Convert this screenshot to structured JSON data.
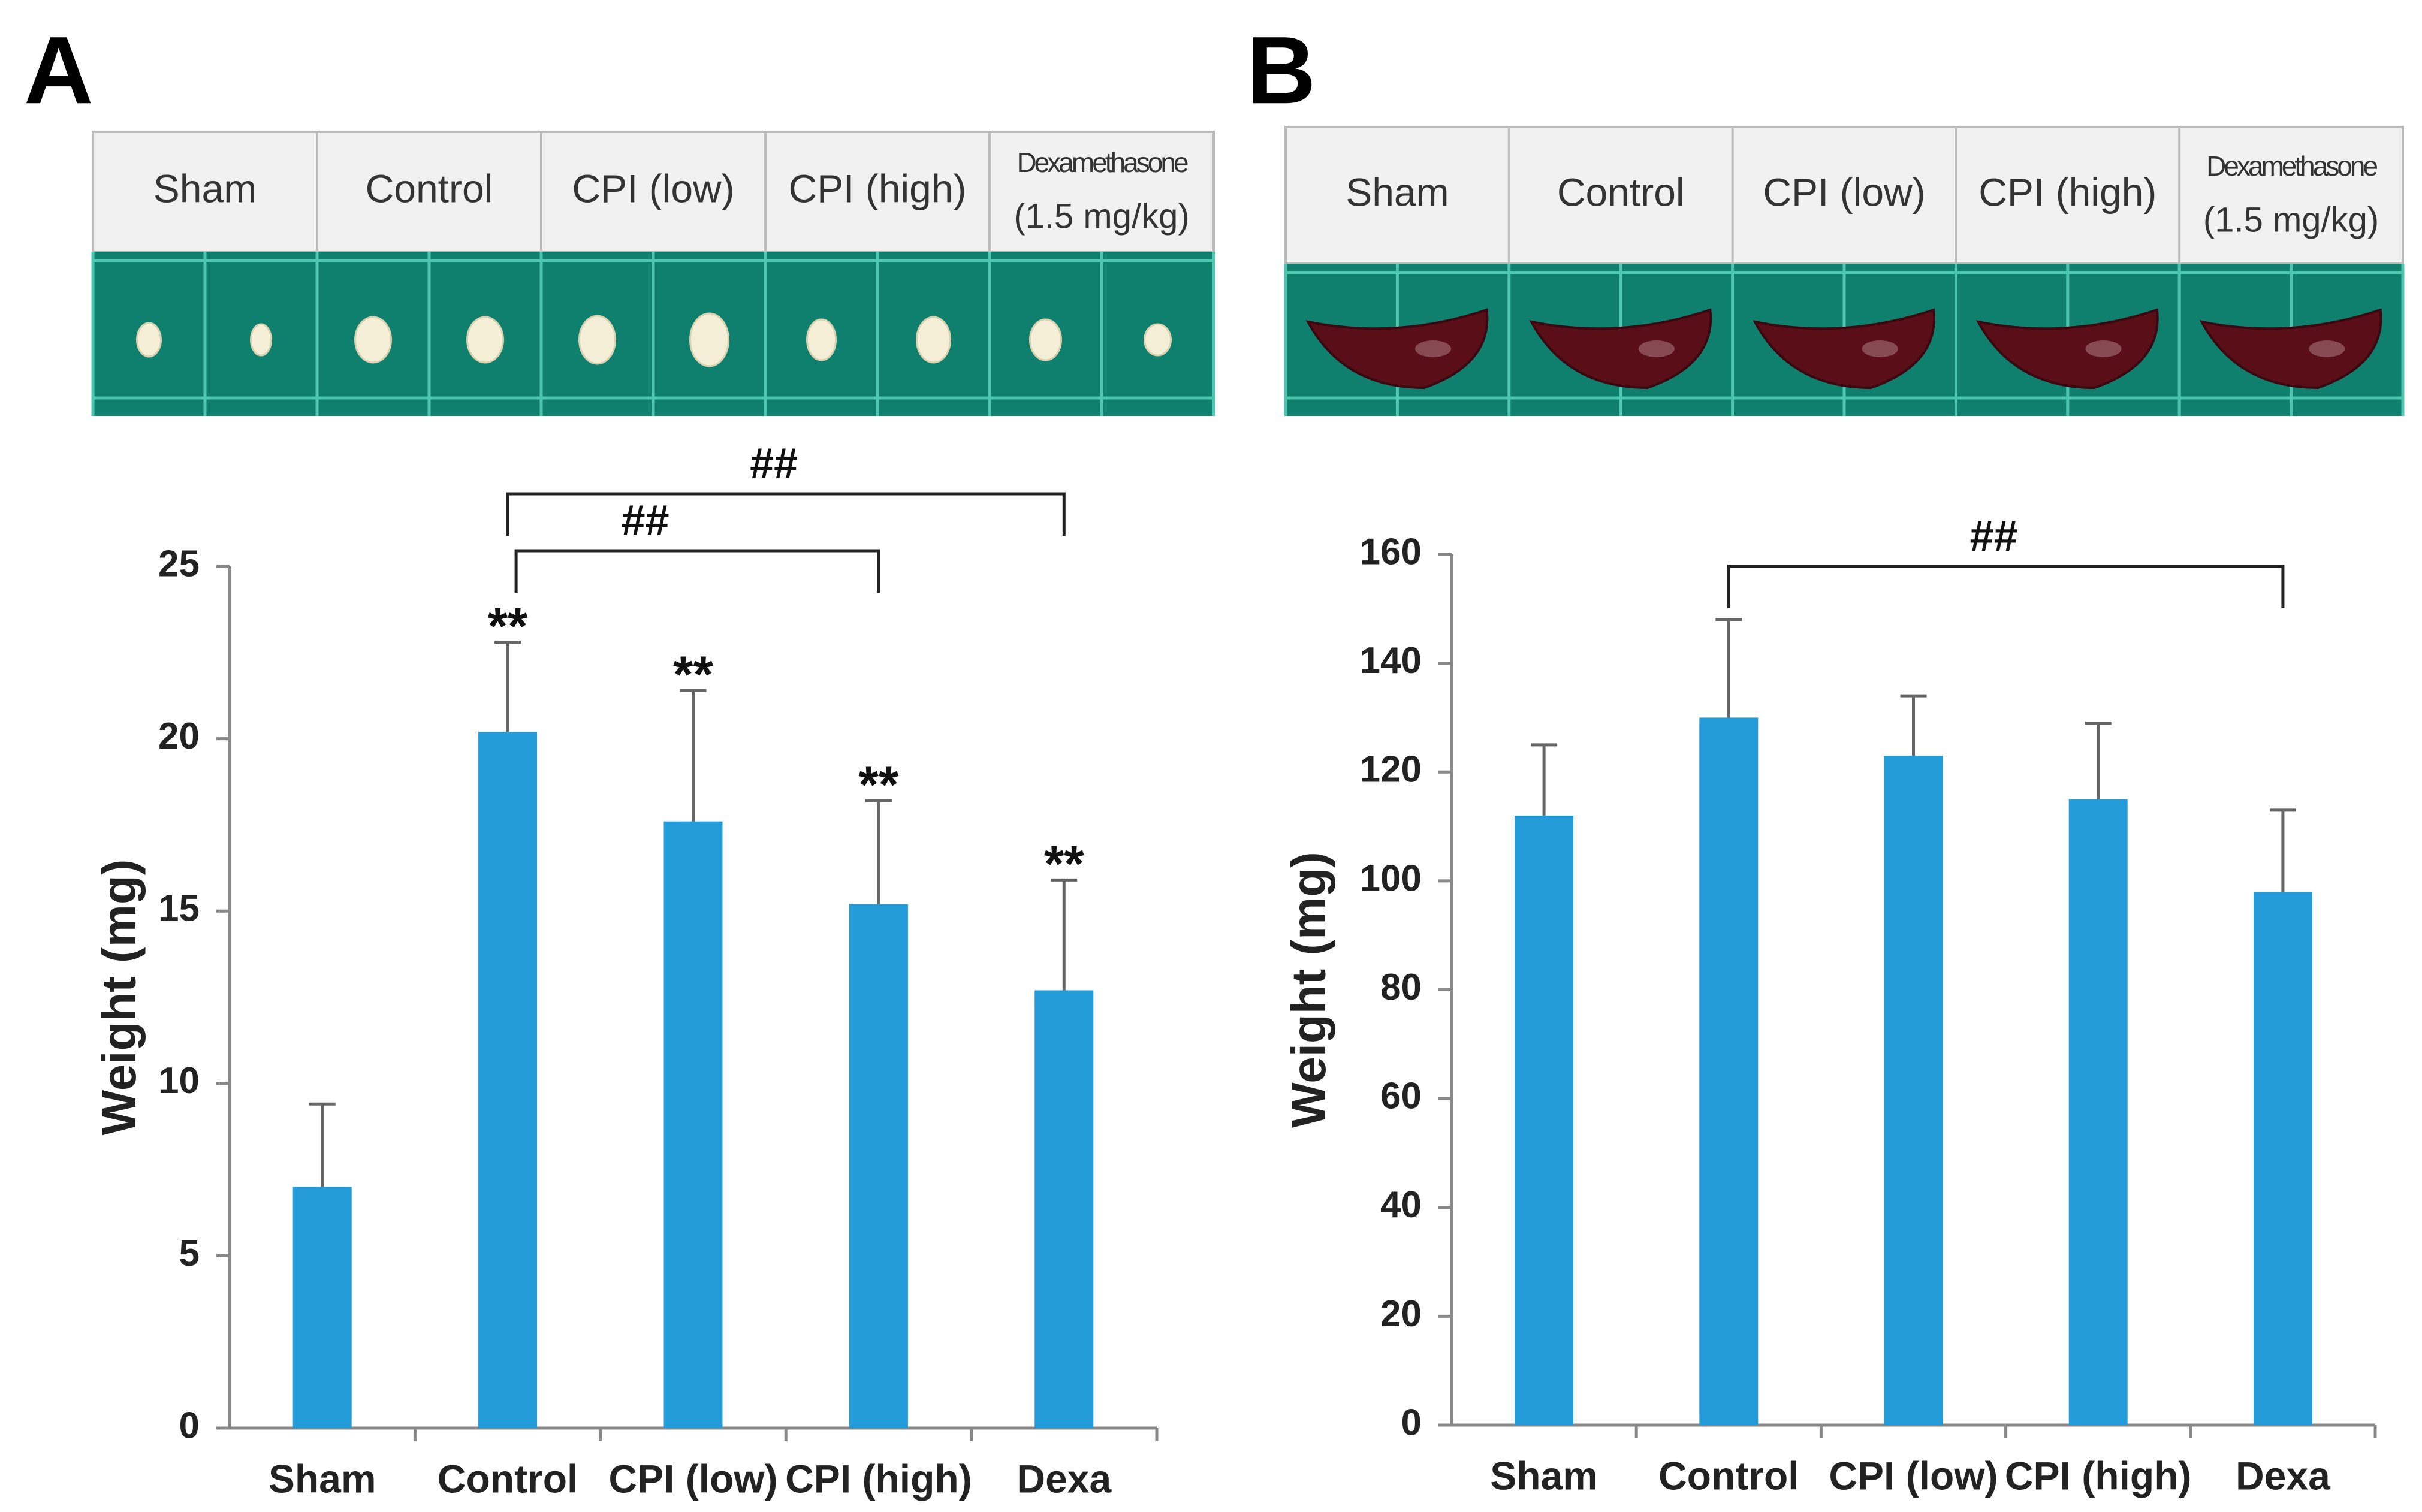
{
  "panels": [
    {
      "label": "A",
      "photo_labels": [
        "Sham",
        "Control",
        "CPI  (low)",
        "CPI  (high)",
        [
          "Dexamethasone",
          "(1.5  mg/kg)"
        ]
      ]
    },
    {
      "label": "B",
      "photo_labels": [
        "Sham",
        "Control",
        "CPI  (low)",
        "CPI  (high)",
        [
          "Dexamethasone",
          "(1.5  mg/kg)"
        ]
      ]
    }
  ],
  "chart_data": [
    {
      "type": "bar",
      "y_label": "Weight (mg)",
      "color": "#229bd8",
      "categories": [
        "Sham",
        "Control",
        "CPI (low)",
        "CPI (high)",
        "Dexa"
      ],
      "values": [
        7.0,
        20.2,
        17.6,
        15.2,
        12.7
      ],
      "errors": [
        2.4,
        2.6,
        3.8,
        3.0,
        3.2
      ],
      "ylim": [
        0,
        25
      ],
      "yticks": [
        0,
        5,
        10,
        15,
        20,
        25
      ],
      "annotations": [
        {
          "text": "**",
          "category": 1
        },
        {
          "text": "**",
          "category": 2
        },
        {
          "text": "**",
          "category": 3
        },
        {
          "text": "**",
          "category": 4
        }
      ],
      "brackets": [
        {
          "text": "##",
          "from": 1,
          "to": 3
        },
        {
          "text": "##",
          "from": 1,
          "to": 4
        }
      ]
    },
    {
      "type": "bar",
      "y_label": "Weight (mg)",
      "color": "#229bd8",
      "categories": [
        "Sham",
        "Control",
        "CPI (low)",
        "CPI (high)",
        "Dexa"
      ],
      "values": [
        112,
        130,
        123,
        115,
        98
      ],
      "errors": [
        13,
        18,
        11,
        14,
        15
      ],
      "ylim": [
        0,
        160
      ],
      "yticks": [
        0,
        20,
        40,
        60,
        80,
        100,
        120,
        140,
        160
      ],
      "brackets": [
        {
          "text": "##",
          "from": 1,
          "to": 4
        }
      ]
    }
  ]
}
